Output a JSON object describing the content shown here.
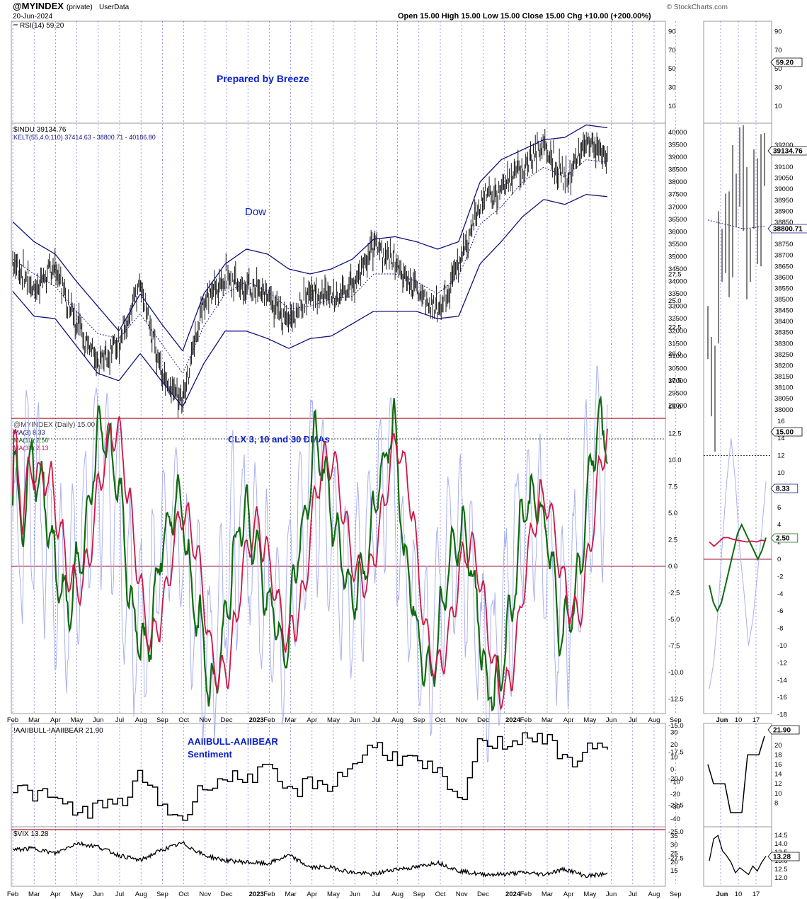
{
  "header": {
    "symbol": "@MYINDEX",
    "privacy": "(private)",
    "owner": "UserData",
    "date": "20-Jun-2024",
    "quote": "Open 15.00  High 15.00  Low 15.00  Close 15.00  Chg +10.00 (+200.00%)",
    "logo_text": "© StockCharts.com"
  },
  "colors": {
    "grid_vertical": "#3b3bd6",
    "band": "#10107a",
    "ma3": "#aab0ee",
    "ma10": "#0f6b0f",
    "ma30": "#cc1744",
    "annotation": "#0a1fc8",
    "zero_line": "#9c1030"
  },
  "x_axis": {
    "main_ticks": [
      "Feb",
      "Mar",
      "Apr",
      "May",
      "Jun",
      "Jul",
      "Aug",
      "Sep",
      "Oct",
      "Nov",
      "Dec",
      "2023",
      "Feb",
      "Mar",
      "Apr",
      "May",
      "Jun",
      "Jul",
      "Aug",
      "Sep",
      "Oct",
      "Nov",
      "Dec",
      "2024",
      "Feb",
      "Mar",
      "Apr",
      "May",
      "Jun",
      "Jul",
      "Aug",
      "Sep"
    ],
    "zoom_ticks": [
      "Jun",
      "10",
      "17"
    ]
  },
  "panels": {
    "rsi": {
      "legend": "RSI(14) 59.20",
      "annotation": "Prepared by Breeze",
      "axis_ticks": [
        "90",
        "70",
        "50",
        "30",
        "10"
      ],
      "zoom_axis_ticks": [
        "90",
        "70",
        "50",
        "30",
        "10"
      ],
      "last_label": "59.20"
    },
    "dow": {
      "legend_1": "$INDU 39134.76",
      "legend_2": "KELT(55,4.0,110) 37414.63 - 38800.71 - 40186.80",
      "annotation": "Dow",
      "axis_ticks": [
        "40000",
        "39500",
        "39000",
        "38500",
        "38000",
        "37500",
        "37000",
        "36500",
        "36000",
        "35500",
        "35000",
        "34500",
        "34000",
        "33500",
        "33000",
        "32500",
        "32000",
        "31500",
        "31000",
        "30500",
        "30000",
        "29500",
        "29000"
      ],
      "zoom_axis_ticks": [
        "39200",
        "39100",
        "39050",
        "39000",
        "38950",
        "38900",
        "38850",
        "38750",
        "38700",
        "38650",
        "38600",
        "38550",
        "38500",
        "38450",
        "38400",
        "38350",
        "38300",
        "38250",
        "38200",
        "38150",
        "38100",
        "38050",
        "38000"
      ],
      "last_label": "39134.76",
      "mid_label": "38800.71"
    },
    "clx": {
      "legend_1": "@MYINDEX (Daily) 15.00",
      "legend_2": "MA(3) 8.33",
      "legend_3": "MA(10) 2.50",
      "legend_4": "MA(30) 2.13",
      "annotation": "CLX 3, 10 and 30 DMAs",
      "axis_ticks": [
        "27.5",
        "25.0",
        "22.5",
        "20.0",
        "17.5",
        "15.0",
        "12.5",
        "10.0",
        "7.5",
        "5.0",
        "2.5",
        "0.0",
        "-2.5",
        "-5.0",
        "-7.5",
        "-10.0",
        "-12.5",
        "-15.0",
        "-17.5",
        "-20.0",
        "-22.5",
        "-25.0",
        "-27.5"
      ],
      "zoom_axis_ticks": [
        "16",
        "14",
        "12",
        "10",
        "8",
        "6",
        "4",
        "2",
        "0",
        "-2",
        "-4",
        "-6",
        "-8",
        "-10",
        "-12",
        "-14",
        "-16",
        "-18"
      ],
      "label_close": "15.00",
      "label_ma3": "8.33",
      "label_ma10": "2.50"
    },
    "aaii": {
      "legend": "!AAIIBULL-!AAIIBEAR 21.90",
      "annotation_1": "AAIIBULL-AAIIBEAR",
      "annotation_2": "Sentiment",
      "axis_ticks": [
        "30",
        "20",
        "10",
        "0",
        "-10",
        "-20",
        "-30",
        "-40"
      ],
      "zoom_axis_ticks": [
        "20",
        "18",
        "16",
        "14",
        "12",
        "10",
        "8"
      ],
      "last_label": "21.90"
    },
    "vix": {
      "legend": "$VIX 13.28",
      "axis_ticks": [
        "35",
        "30",
        "25",
        "20",
        "15"
      ],
      "zoom_axis_ticks": [
        "14.5",
        "14.0",
        "13.5",
        "13.0",
        "12.5",
        "12.0"
      ],
      "last_label": "13.28"
    }
  },
  "chart_data": [
    {
      "type": "line",
      "title": "RSI(14)",
      "series": [
        {
          "name": "RSI(14)",
          "values": [
            59.2
          ]
        }
      ],
      "ylim": [
        0,
        100
      ]
    },
    {
      "type": "line",
      "title": "$INDU",
      "x": [
        "2022-02",
        "2022-03",
        "2022-04",
        "2022-05",
        "2022-06",
        "2022-07",
        "2022-08",
        "2022-09",
        "2022-10",
        "2022-11",
        "2022-12",
        "2023-01",
        "2023-02",
        "2023-03",
        "2023-04",
        "2023-05",
        "2023-06",
        "2023-07",
        "2023-08",
        "2023-09",
        "2023-10",
        "2023-11",
        "2023-12",
        "2024-01",
        "2024-02",
        "2024-03",
        "2024-04",
        "2024-05",
        "2024-06"
      ],
      "series": [
        {
          "name": "$INDU",
          "values": [
            34900,
            33700,
            34500,
            32400,
            30600,
            31500,
            33900,
            30300,
            29200,
            33200,
            34100,
            33800,
            33500,
            32300,
            33600,
            33300,
            33900,
            35500,
            34700,
            33600,
            32800,
            34600,
            37200,
            37800,
            38600,
            39500,
            38100,
            39600,
            39134.76
          ]
        },
        {
          "name": "KELT upper",
          "values": [
            36400,
            35600,
            35100,
            34000,
            33000,
            32000,
            33500,
            32300,
            31200,
            33500,
            34700,
            35300,
            35100,
            34500,
            34300,
            34500,
            34900,
            35700,
            35800,
            35600,
            35300,
            35600,
            38000,
            38900,
            39300,
            39700,
            39800,
            40300,
            40186.8
          ]
        },
        {
          "name": "KELT middle",
          "values": [
            34900,
            34300,
            33800,
            32800,
            31900,
            31700,
            32700,
            31500,
            30300,
            32200,
            33500,
            34000,
            33600,
            32900,
            33000,
            33300,
            33400,
            34300,
            34300,
            34000,
            33500,
            34200,
            36300,
            37000,
            38000,
            38600,
            38200,
            38900,
            38800.71
          ]
        },
        {
          "name": "KELT lower",
          "values": [
            33600,
            32600,
            32500,
            31400,
            30300,
            30000,
            31100,
            30000,
            28950,
            30700,
            32000,
            32000,
            31700,
            31300,
            31700,
            31800,
            32300,
            32800,
            32800,
            32800,
            32500,
            32600,
            34700,
            35600,
            36600,
            37300,
            37100,
            37500,
            37414.63
          ]
        }
      ],
      "ylim": [
        28800,
        40200
      ]
    },
    {
      "type": "line",
      "title": "@MYINDEX (Daily)",
      "series": [
        {
          "name": "MA(3)",
          "values": [
            8.33
          ]
        },
        {
          "name": "MA(10)",
          "values": [
            2.5
          ]
        },
        {
          "name": "MA(30)",
          "values": [
            2.13
          ]
        }
      ],
      "ylim": [
        -27.5,
        27.5
      ]
    },
    {
      "type": "line",
      "title": "!AAIIBULL-!AAIIBEAR",
      "x": [
        "2022-02",
        "2022-03",
        "2022-04",
        "2022-05",
        "2022-06",
        "2022-07",
        "2022-08",
        "2022-09",
        "2022-10",
        "2022-11",
        "2022-12",
        "2023-01",
        "2023-02",
        "2023-03",
        "2023-04",
        "2023-05",
        "2023-06",
        "2023-07",
        "2023-08",
        "2023-09",
        "2023-10",
        "2023-11",
        "2023-12",
        "2024-01",
        "2024-02",
        "2024-03",
        "2024-04",
        "2024-05",
        "2024-06"
      ],
      "series": [
        {
          "name": "!AAIIBULL-!AAIIBEAR",
          "values": [
            -15,
            -20,
            -25,
            -35,
            -30,
            -28,
            -5,
            -30,
            -40,
            -10,
            -8,
            -5,
            -2,
            -20,
            -10,
            -12,
            5,
            20,
            10,
            5,
            -5,
            -30,
            25,
            20,
            28,
            25,
            5,
            15,
            21.9
          ]
        }
      ],
      "ylim": [
        -45,
        35
      ]
    },
    {
      "type": "line",
      "title": "$VIX",
      "x": [
        "2022-02",
        "2022-03",
        "2022-04",
        "2022-05",
        "2022-06",
        "2022-07",
        "2022-08",
        "2022-09",
        "2022-10",
        "2022-11",
        "2022-12",
        "2023-01",
        "2023-02",
        "2023-03",
        "2023-04",
        "2023-05",
        "2023-06",
        "2023-07",
        "2023-08",
        "2023-09",
        "2023-10",
        "2023-11",
        "2023-12",
        "2024-01",
        "2024-02",
        "2024-03",
        "2024-04",
        "2024-05",
        "2024-06"
      ],
      "series": [
        {
          "name": "$VIX",
          "values": [
            27,
            28,
            25,
            31,
            29,
            24,
            21,
            27,
            31,
            24,
            21,
            20,
            19,
            24,
            17,
            17,
            14,
            13,
            16,
            17,
            20,
            15,
            13,
            13,
            14,
            13,
            16,
            12,
            13.28
          ]
        }
      ],
      "ylim": [
        11,
        38
      ]
    }
  ]
}
